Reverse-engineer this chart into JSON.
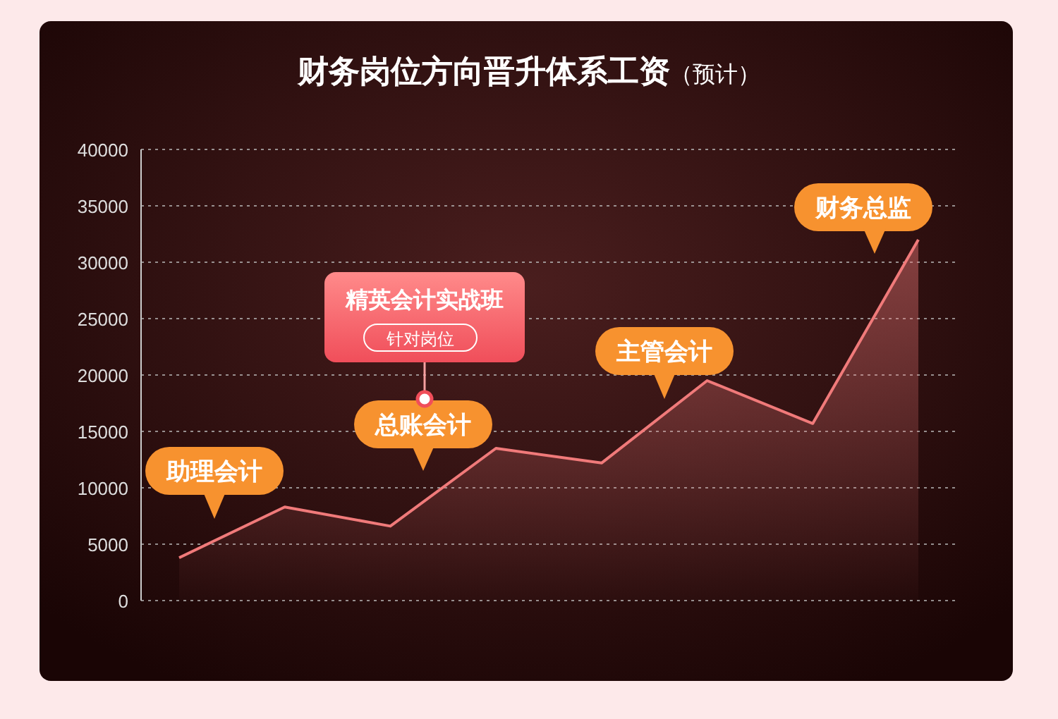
{
  "chart_data": {
    "type": "area",
    "title": "财务岗位方向晋升体系工资",
    "subtitle": "（预计）",
    "categories": [
      null,
      null,
      null,
      null,
      null,
      null,
      null,
      null
    ],
    "series": [
      {
        "color": "#f07a7a",
        "values": [
          3800,
          8300,
          6600,
          13500,
          12200,
          19500,
          15700,
          32000
        ]
      }
    ],
    "ylim": [
      0,
      40000
    ],
    "yticks": [
      0,
      5000,
      10000,
      15000,
      20000,
      25000,
      30000,
      35000,
      40000
    ],
    "grid": "y",
    "marker": "none",
    "line_style": "solid",
    "annotations": [
      "助理会计",
      "总账会计",
      "主管会计",
      "财务总监",
      "精英会计实战班",
      "针对岗位"
    ]
  }
}
